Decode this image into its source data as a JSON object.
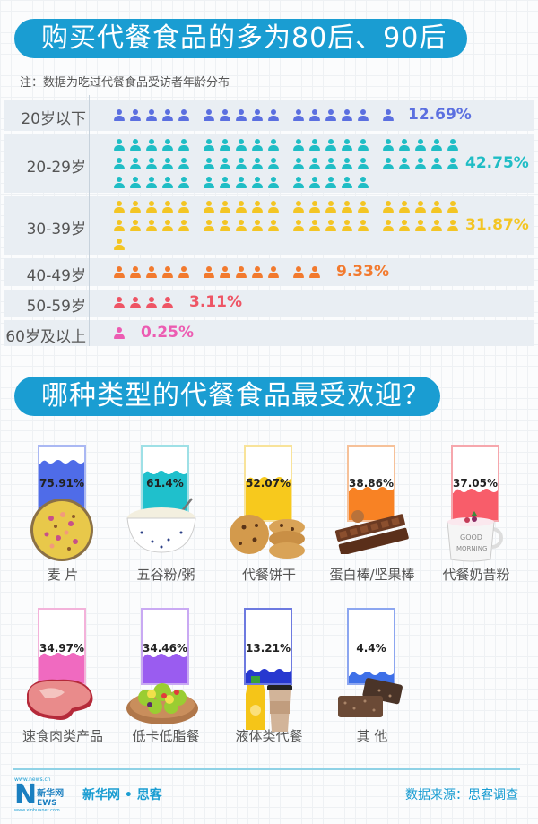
{
  "section1": {
    "title": "购买代餐食品的多为80后、90后",
    "note": "注：数据为吃过代餐食品受访者年龄分布"
  },
  "section2": {
    "title": "哪种类型的代餐食品最受欢迎？"
  },
  "age_rows": [
    {
      "label": "20岁以下",
      "icons": 16,
      "pct": "12.69%",
      "color": "#5b6fe0"
    },
    {
      "label": "20-29岁",
      "icons": 55,
      "pct": "42.75%",
      "color": "#1fbdc5"
    },
    {
      "label": "30-39岁",
      "icons": 41,
      "pct": "31.87%",
      "color": "#f3c524"
    },
    {
      "label": "40-49岁",
      "icons": 12,
      "pct": "9.33%",
      "color": "#f27a2e"
    },
    {
      "label": "50-59岁",
      "icons": 4,
      "pct": "3.11%",
      "color": "#ee5565"
    },
    {
      "label": "60岁及以上",
      "icons": 1,
      "pct": "0.25%",
      "color": "#ec5cb2"
    }
  ],
  "food_types": [
    {
      "label": "麦 片",
      "pct": "75.91%",
      "value": 75.91,
      "color": "#4f6ce8",
      "border": "#aab8f3",
      "food": "cereal-bowl"
    },
    {
      "label": "五谷粉/粥",
      "pct": "61.4%",
      "value": 61.4,
      "color": "#1fc0cc",
      "border": "#9ee0e6",
      "food": "porridge-bowl"
    },
    {
      "label": "代餐饼干",
      "pct": "52.07%",
      "value": 52.07,
      "color": "#f7c91d",
      "border": "#f8e39a",
      "food": "cookies"
    },
    {
      "label": "蛋白棒/坚果棒",
      "pct": "38.86%",
      "value": 38.86,
      "color": "#f88224",
      "border": "#f6c199",
      "food": "protein-bar"
    },
    {
      "label": "代餐奶昔粉",
      "pct": "37.05%",
      "value": 37.05,
      "color": "#f85d6a",
      "border": "#f6a7ad",
      "food": "shake-mug"
    },
    {
      "label": "速食肉类产品",
      "pct": "34.97%",
      "value": 34.97,
      "color": "#f06ac0",
      "border": "#f3b2da",
      "food": "steak"
    },
    {
      "label": "低卡低脂餐",
      "pct": "34.46%",
      "value": 34.46,
      "color": "#9a5cf0",
      "border": "#c9a9f3",
      "food": "salad"
    },
    {
      "label": "液体类代餐",
      "pct": "13.21%",
      "value": 13.21,
      "color": "#2738d0",
      "border": "#6d7ae0",
      "food": "juice-coffee"
    },
    {
      "label": "其 他",
      "pct": "4.4%",
      "value": 4.4,
      "color": "#3e70e8",
      "border": "#8ca6f0",
      "food": "granola-bars"
    }
  ],
  "footer": {
    "logo_top": "www.news.cn",
    "logo_main": "新华网",
    "logo_news": "NEWS",
    "logo_bottom": "www.xinhuanet.com",
    "brand": "新华网 • 思客",
    "source": "数据来源：思客调查"
  },
  "chart_data": [
    {
      "type": "bar",
      "title": "购买代餐食品的多为80后、90后",
      "subtitle": "注：数据为吃过代餐食品受访者年龄分布",
      "categories": [
        "20岁以下",
        "20-29岁",
        "30-39岁",
        "40-49岁",
        "50-59岁",
        "60岁及以上"
      ],
      "values": [
        12.69,
        42.75,
        31.87,
        9.33,
        3.11,
        0.25
      ],
      "unit": "%",
      "orientation": "horizontal",
      "style": "pictogram"
    },
    {
      "type": "bar",
      "title": "哪种类型的代餐食品最受欢迎？",
      "categories": [
        "麦片",
        "五谷粉/粥",
        "代餐饼干",
        "蛋白棒/坚果棒",
        "代餐奶昔粉",
        "速食肉类产品",
        "低卡低脂餐",
        "液体类代餐",
        "其他"
      ],
      "values": [
        75.91,
        61.4,
        52.07,
        38.86,
        37.05,
        34.97,
        34.46,
        13.21,
        4.4
      ],
      "unit": "%",
      "style": "fill-glass",
      "source": "数据来源：思客调查"
    }
  ]
}
